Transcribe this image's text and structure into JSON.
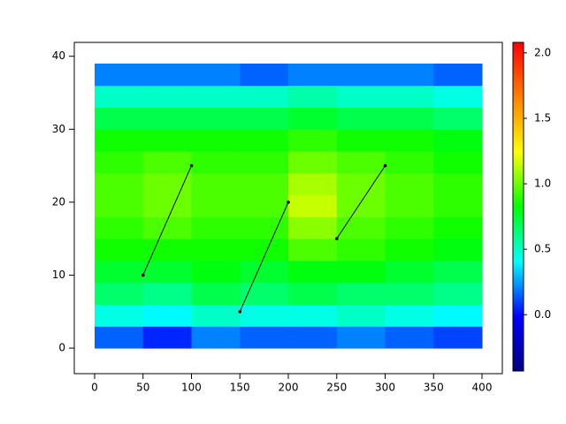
{
  "chart_data": {
    "type": "heatmap",
    "x_edges": [
      0,
      50,
      100,
      150,
      200,
      250,
      300,
      350,
      400
    ],
    "y_edges": [
      0,
      3,
      6,
      9,
      12,
      15,
      18,
      21,
      24,
      27,
      30,
      33,
      36,
      39
    ],
    "z": [
      [
        0.15,
        0.05,
        0.2,
        0.15,
        0.15,
        0.2,
        0.15,
        0.1
      ],
      [
        0.45,
        0.4,
        0.5,
        0.45,
        0.45,
        0.5,
        0.45,
        0.4
      ],
      [
        0.65,
        0.6,
        0.7,
        0.65,
        0.7,
        0.65,
        0.65,
        0.6
      ],
      [
        0.75,
        0.75,
        0.8,
        0.75,
        0.8,
        0.8,
        0.75,
        0.7
      ],
      [
        0.85,
        0.85,
        0.85,
        0.85,
        0.95,
        0.9,
        0.85,
        0.8
      ],
      [
        0.9,
        0.95,
        0.9,
        0.9,
        1.05,
        0.95,
        0.9,
        0.85
      ],
      [
        0.95,
        1.0,
        0.95,
        0.95,
        1.15,
        1.0,
        0.95,
        0.9
      ],
      [
        0.95,
        1.0,
        0.95,
        0.95,
        1.1,
        1.0,
        0.95,
        0.9
      ],
      [
        0.9,
        0.95,
        0.9,
        0.9,
        1.0,
        0.95,
        0.9,
        0.85
      ],
      [
        0.85,
        0.85,
        0.85,
        0.85,
        0.9,
        0.85,
        0.85,
        0.8
      ],
      [
        0.7,
        0.7,
        0.7,
        0.7,
        0.75,
        0.7,
        0.7,
        0.65
      ],
      [
        0.5,
        0.5,
        0.5,
        0.5,
        0.55,
        0.5,
        0.5,
        0.45
      ],
      [
        0.2,
        0.2,
        0.2,
        0.15,
        0.2,
        0.2,
        0.2,
        0.15
      ]
    ],
    "clim": [
      -0.43,
      2.08
    ],
    "colormap": [
      "#000080",
      "#0000ff",
      "#00ffff",
      "#00ff00",
      "#ffff00",
      "#ff8000",
      "#ff0000"
    ],
    "segments": [
      {
        "x": [
          50,
          100
        ],
        "y": [
          10,
          25
        ]
      },
      {
        "x": [
          150,
          200
        ],
        "y": [
          5,
          20
        ]
      },
      {
        "x": [
          250,
          300
        ],
        "y": [
          15,
          25
        ]
      }
    ],
    "segment_color": "#000000",
    "xlim": [
      -21,
      421
    ],
    "ylim": [
      -3.5,
      41.9
    ],
    "xticks": [
      0,
      50,
      100,
      150,
      200,
      250,
      300,
      350,
      400
    ],
    "yticks": [
      0,
      10,
      20,
      30,
      40
    ],
    "cticks": [
      {
        "value": 0,
        "label": "0.0"
      },
      0.5,
      {
        "value": 1,
        "label": "1.0"
      },
      1.5,
      {
        "value": 2,
        "label": "2.0"
      }
    ]
  }
}
